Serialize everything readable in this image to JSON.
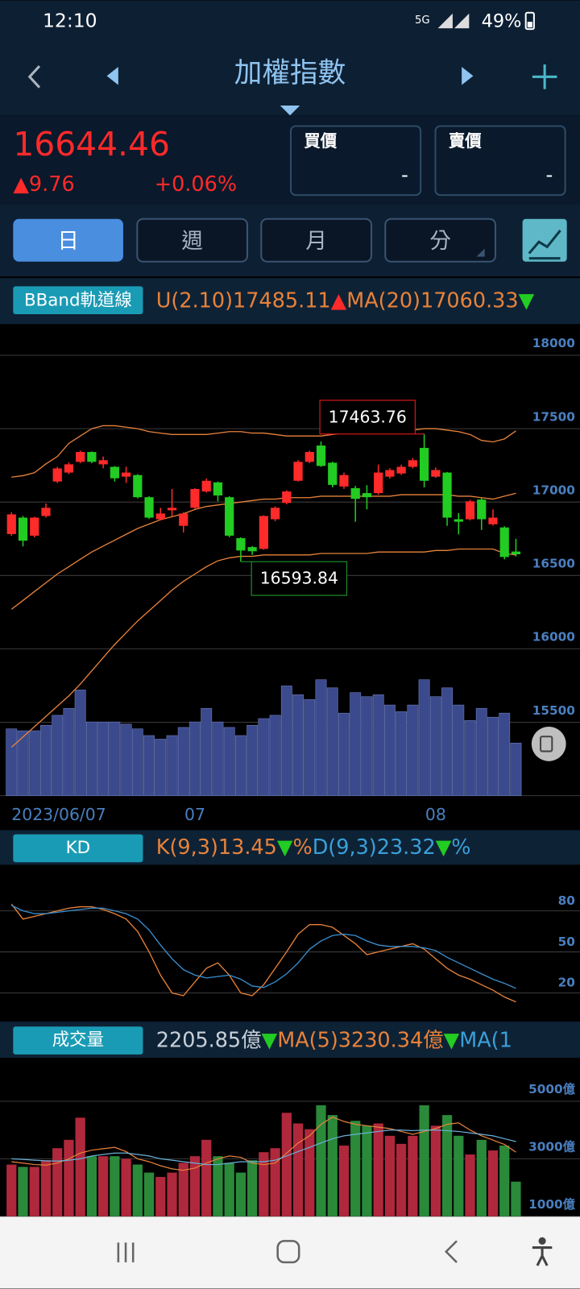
{
  "status_bar": {
    "time": "12:10",
    "network": "5G",
    "battery": "49%"
  },
  "header": {
    "title": "加權指數"
  },
  "quote": {
    "price": "16644.46",
    "change": "▲9.76",
    "change_pct": "+0.06%",
    "bid_label": "買價",
    "bid": "-",
    "ask_label": "賣價",
    "ask": "-"
  },
  "tabs": [
    "日",
    "週",
    "月",
    "分"
  ],
  "chart_data": [
    {
      "type": "candlestick",
      "indicator": "BBand軌道線",
      "legend": [
        {
          "text": "U(2.10)17485.11",
          "color": "#e8823a"
        },
        {
          "text": "▲",
          "color": "#ff2a2a"
        },
        {
          "text": "MA(20)17060.33",
          "color": "#e8823a"
        },
        {
          "text": "▼",
          "color": "#22cc22"
        }
      ],
      "categories": [
        "2023/06/07",
        null,
        null,
        null,
        null,
        null,
        null,
        null,
        null,
        null,
        null,
        null,
        null,
        null,
        null,
        null,
        "07",
        null,
        null,
        null,
        null,
        null,
        null,
        null,
        null,
        null,
        null,
        null,
        null,
        null,
        null,
        null,
        null,
        null,
        null,
        null,
        null,
        "08",
        null,
        null,
        null,
        null,
        null,
        null,
        null
      ],
      "open": [
        16782,
        16894,
        16771,
        16905,
        17140,
        17201,
        17274,
        17341,
        17257,
        17240,
        17173,
        17184,
        17033,
        16883,
        16944,
        16838,
        16961,
        17072,
        17134,
        17033,
        16754,
        16693,
        16681,
        16883,
        16994,
        17145,
        17274,
        17385,
        17268,
        17106,
        17095,
        17061,
        17061,
        17173,
        17195,
        17240,
        17369,
        17173,
        17201,
        16883,
        16883,
        17017,
        16849,
        16827,
        16663
      ],
      "high": [
        16930,
        16905,
        16900,
        16990,
        17240,
        17270,
        17350,
        17345,
        17310,
        17245,
        17240,
        17190,
        17040,
        16960,
        17089,
        16930,
        17095,
        17160,
        17140,
        17040,
        16760,
        16700,
        16910,
        16970,
        17080,
        17285,
        17350,
        17413,
        17275,
        17200,
        17110,
        17115,
        17255,
        17230,
        17255,
        17300,
        17463.76,
        17235,
        17205,
        16925,
        17015,
        17030,
        16950,
        16835,
        16750
      ],
      "low": [
        16770,
        16698,
        16760,
        16895,
        17130,
        17190,
        17265,
        17265,
        17230,
        17140,
        17130,
        17025,
        16885,
        16875,
        16905,
        16793,
        16955,
        17065,
        17005,
        16760,
        16593.84,
        16640,
        16675,
        16870,
        16985,
        17140,
        17265,
        17240,
        17100,
        17090,
        16866,
        16950,
        17050,
        17160,
        17185,
        17230,
        17100,
        17165,
        16838,
        16780,
        16875,
        16810,
        16840,
        16610,
        16630
      ],
      "close": [
        16916,
        16737,
        16894,
        16961,
        17229,
        17257,
        17341,
        17274,
        17285,
        17162,
        17201,
        17033,
        16894,
        16922,
        16961,
        16922,
        17089,
        17145,
        17045,
        16771,
        16670,
        16665,
        16905,
        16961,
        17072,
        17274,
        17341,
        17246,
        17117,
        17184,
        17022,
        17033,
        17201,
        17218,
        17240,
        17285,
        17145,
        17218,
        16894,
        16866,
        17005,
        16883,
        16894,
        16626,
        16644.46
      ],
      "up_color": "#ff2a2a",
      "down_color": "#22cc22",
      "bands": [
        {
          "color": "#e8823a",
          "values": [
            17170,
            17180,
            17200,
            17260,
            17310,
            17400,
            17450,
            17500,
            17520,
            17520,
            17510,
            17500,
            17480,
            17470,
            17460,
            17460,
            17460,
            17460,
            17470,
            17480,
            17480,
            17470,
            17470,
            17460,
            17450,
            17450,
            17450,
            17450,
            17460,
            17470,
            17470,
            17480,
            17480,
            17480,
            17490,
            17490,
            17500,
            17500,
            17490,
            17480,
            17460,
            17420,
            17410,
            17430,
            17485.11
          ]
        },
        {
          "color": "#e8823a",
          "values": [
            16270,
            16330,
            16390,
            16450,
            16510,
            16560,
            16610,
            16660,
            16700,
            16740,
            16780,
            16820,
            16850,
            16880,
            16900,
            16920,
            16950,
            16970,
            16980,
            16990,
            17000,
            17010,
            17020,
            17020,
            17030,
            17030,
            17030,
            17040,
            17040,
            17040,
            17040,
            17040,
            17040,
            17040,
            17050,
            17050,
            17050,
            17050,
            17050,
            17040,
            17040,
            17030,
            17020,
            17040,
            17060.33
          ]
        },
        {
          "color": "#e8823a",
          "values": [
            15330,
            15400,
            15470,
            15540,
            15610,
            15680,
            15760,
            15850,
            15940,
            16030,
            16110,
            16190,
            16260,
            16330,
            16400,
            16460,
            16510,
            16560,
            16600,
            16620,
            16630,
            16630,
            16640,
            16640,
            16640,
            16640,
            16640,
            16650,
            16650,
            16650,
            16650,
            16650,
            16660,
            16660,
            16660,
            16660,
            16660,
            16670,
            16670,
            16680,
            16680,
            16680,
            16680,
            16650,
            16640
          ]
        }
      ],
      "annotations": [
        {
          "value": 17463.76,
          "color": "#d01818"
        },
        {
          "value": 16593.84,
          "color": "#1e8a2a"
        }
      ],
      "ylim": [
        15000,
        18190
      ],
      "yticks": [
        15500,
        16000,
        16500,
        17000,
        17500,
        18000
      ],
      "grid": true
    },
    {
      "type": "line",
      "indicator": "KD",
      "legend": [
        {
          "text": "K(9,3)13.45",
          "color": "#e8823a"
        },
        {
          "text": "▼",
          "color": "#22cc22"
        },
        {
          "text": "%",
          "color": "#e8823a"
        },
        {
          "text": "D(9,3)23.32",
          "color": "#3aa0d8"
        },
        {
          "text": "▼",
          "color": "#22cc22"
        },
        {
          "text": "%",
          "color": "#3aa0d8"
        }
      ],
      "series": [
        {
          "color": "#e8823a",
          "values": [
            85,
            74,
            76,
            78,
            80,
            82,
            83,
            83,
            81,
            78,
            74,
            65,
            50,
            33,
            20,
            18,
            28,
            38,
            42,
            33,
            20,
            18,
            26,
            38,
            50,
            63,
            70,
            70,
            68,
            62,
            56,
            48,
            50,
            52,
            54,
            56,
            52,
            45,
            38,
            33,
            30,
            26,
            22,
            17,
            13.45
          ]
        },
        {
          "color": "#3a8fd0",
          "values": [
            84,
            80,
            78,
            78,
            79,
            80,
            81,
            82,
            82,
            80,
            78,
            74,
            66,
            55,
            45,
            37,
            33,
            31,
            32,
            33,
            30,
            25,
            24,
            28,
            34,
            42,
            52,
            58,
            62,
            63,
            62,
            58,
            55,
            54,
            54,
            54,
            53,
            51,
            46,
            42,
            38,
            34,
            30,
            27,
            23.32
          ]
        }
      ],
      "ylim": [
        2,
        112
      ],
      "yticks": [
        20,
        50,
        80
      ],
      "grid": true
    },
    {
      "type": "bar",
      "indicator": "成交量",
      "legend": [
        {
          "text": "2205.85億",
          "color": "#c8d0d8"
        },
        {
          "text": "▼",
          "color": "#22cc22"
        },
        {
          "text": "MA(5)3230.34億",
          "color": "#e8823a"
        },
        {
          "text": "▼",
          "color": "#22cc22"
        },
        {
          "text": "MA(1",
          "color": "#3aa0d8"
        }
      ],
      "values": [
        2800,
        2720,
        2720,
        2950,
        3370,
        3660,
        4430,
        3090,
        3090,
        3090,
        3000,
        2800,
        2520,
        2370,
        2520,
        2860,
        3090,
        3660,
        3090,
        2860,
        2520,
        2950,
        3230,
        3370,
        4600,
        4230,
        4030,
        4860,
        4520,
        3460,
        4320,
        4150,
        4230,
        3800,
        3520,
        3800,
        4860,
        4150,
        4520,
        3800,
        3150,
        3660,
        3290,
        3460,
        2205.85
      ],
      "up_color": "#b0283c",
      "down_color": "#2a8a3a",
      "overlay_color": "#3b4a8c",
      "series": [
        {
          "color": "#e8823a",
          "values": [
            2900,
            2850,
            2800,
            2780,
            2850,
            3000,
            3200,
            3300,
            3350,
            3400,
            3250,
            3000,
            2900,
            2760,
            2650,
            2600,
            2680,
            2850,
            3000,
            3100,
            3050,
            2850,
            2800,
            2850,
            3200,
            3550,
            3800,
            4200,
            4450,
            4300,
            4200,
            4150,
            4100,
            4050,
            3950,
            3850,
            3950,
            4050,
            4200,
            4250,
            4000,
            3800,
            3650,
            3500,
            3230.34
          ]
        },
        {
          "color": "#6ab0d8",
          "values": [
            3000,
            2980,
            2950,
            2930,
            2920,
            2950,
            3000,
            3100,
            3150,
            3200,
            3200,
            3150,
            3100,
            3000,
            2950,
            2900,
            2850,
            2800,
            2800,
            2850,
            2900,
            2900,
            2900,
            2950,
            3100,
            3250,
            3400,
            3550,
            3700,
            3800,
            3850,
            3900,
            3950,
            4000,
            4000,
            3980,
            4000,
            4000,
            3980,
            3950,
            3900,
            3850,
            3800,
            3700,
            3600
          ]
        }
      ],
      "ylim": [
        1000,
        6370
      ],
      "yticks": [
        {
          "value": 1000,
          "label": "1000億"
        },
        {
          "value": 3000,
          "label": "3000億"
        },
        {
          "value": 5000,
          "label": "5000億"
        }
      ],
      "grid": true
    }
  ]
}
